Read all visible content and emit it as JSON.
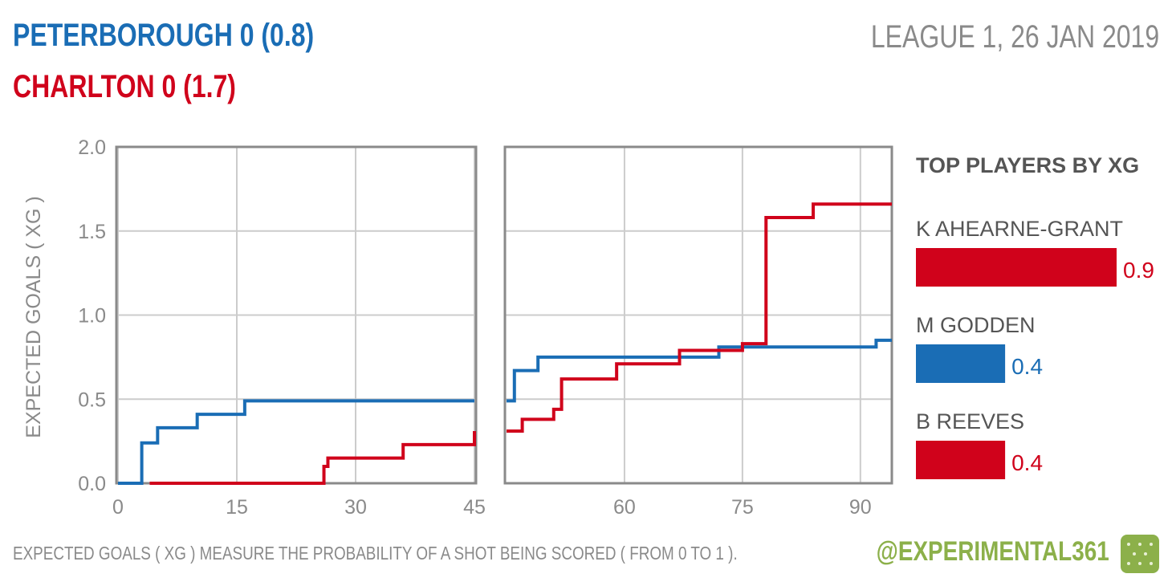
{
  "header": {
    "home_line": "PETERBOROUGH  0  (0.8)",
    "away_line": "CHARLTON  0  (1.7)",
    "competition": "LEAGUE 1, 26 JAN 2019"
  },
  "footer": {
    "note": "EXPECTED GOALS ( XG ) MEASURE THE PROBABILITY  OF A SHOT BEING SCORED ( FROM 0 TO 1 ).",
    "handle": "@EXPERIMENTAL361"
  },
  "colors": {
    "home": "#1a6db5",
    "away": "#d0021b",
    "grid": "#cccccc",
    "frame": "#8a8a8a",
    "text": "#8a8a8a",
    "accent": "#8cb04a"
  },
  "chart_data": [
    {
      "type": "line",
      "step": true,
      "ylabel": "EXPECTED GOALS ( XG )",
      "ylim": [
        0,
        2
      ],
      "yticks": [
        "0.0",
        "0.5",
        "1.0",
        "1.5",
        "2.0"
      ],
      "grid": true,
      "panels": [
        {
          "xlim": [
            0,
            45
          ],
          "xticks": [
            0,
            15,
            30,
            45
          ]
        },
        {
          "xlim": [
            45,
            94
          ],
          "xticks": [
            60,
            75,
            90
          ]
        }
      ],
      "series": [
        {
          "name": "PETERBOROUGH",
          "color": "#1a6db5",
          "half1": [
            [
              0,
              0
            ],
            [
              3,
              0.24
            ],
            [
              5,
              0.33
            ],
            [
              10,
              0.41
            ],
            [
              16,
              0.49
            ],
            [
              45,
              0.49
            ]
          ],
          "half2": [
            [
              45,
              0.49
            ],
            [
              46,
              0.67
            ],
            [
              49,
              0.75
            ],
            [
              72,
              0.81
            ],
            [
              92,
              0.85
            ],
            [
              94,
              0.85
            ]
          ]
        },
        {
          "name": "CHARLTON",
          "color": "#d0021b",
          "half1": [
            [
              4,
              0
            ],
            [
              26,
              0.1
            ],
            [
              26.5,
              0.15
            ],
            [
              36,
              0.23
            ],
            [
              45,
              0.31
            ]
          ],
          "half2": [
            [
              45,
              0.31
            ],
            [
              47,
              0.38
            ],
            [
              51,
              0.44
            ],
            [
              52,
              0.62
            ],
            [
              59,
              0.71
            ],
            [
              67,
              0.79
            ],
            [
              73,
              0.79
            ],
            [
              75,
              0.83
            ],
            [
              78,
              1.58
            ],
            [
              84,
              1.66
            ],
            [
              94,
              1.66
            ]
          ]
        }
      ]
    },
    {
      "type": "bar",
      "orientation": "horizontal",
      "title": "TOP PLAYERS BY XG",
      "categories": [
        "K AHEARNE-GRANT",
        "M GODDEN",
        "B REEVES"
      ],
      "values": [
        0.9,
        0.4,
        0.4
      ],
      "labels": [
        "0.9",
        "0.4",
        "0.4"
      ],
      "colors": [
        "#d0021b",
        "#1a6db5",
        "#d0021b"
      ],
      "xlim": [
        0,
        0.9
      ]
    }
  ]
}
